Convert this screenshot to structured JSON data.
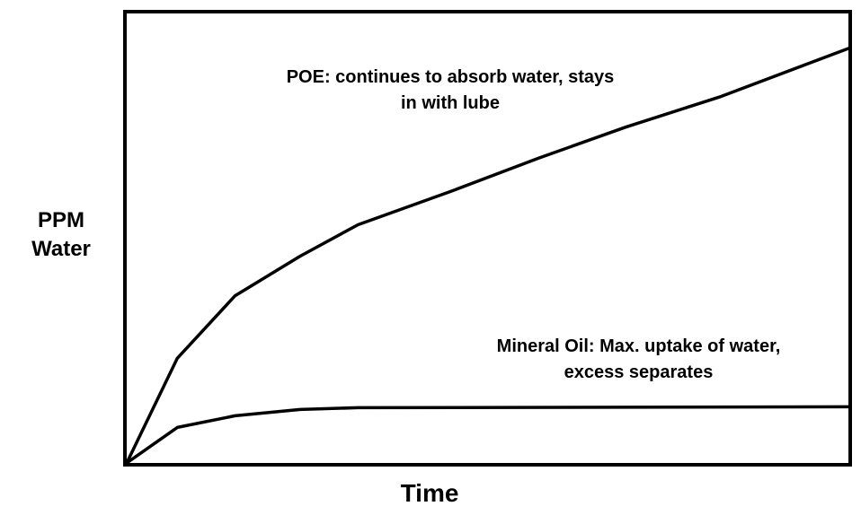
{
  "chart_data": {
    "type": "line",
    "x_label": "Time",
    "y_label": "PPM Water",
    "xlim": [
      0,
      100
    ],
    "ylim": [
      0,
      100
    ],
    "series": [
      {
        "name": "POE",
        "color": "#000000",
        "x": [
          0,
          7,
          15,
          24,
          32,
          45,
          57,
          69,
          82,
          100
        ],
        "values": [
          0,
          23.3,
          37.2,
          46,
          53,
          60.5,
          67.8,
          74.7,
          81.4,
          92.3
        ]
      },
      {
        "name": "Mineral Oil",
        "color": "#000000",
        "x": [
          0,
          7,
          15,
          24,
          32,
          100
        ],
        "values": [
          0,
          7.9,
          10.5,
          11.9,
          12.3,
          12.5
        ]
      }
    ],
    "annotations": [
      {
        "text": "POE: continues to absorb water, stays in with lube",
        "series": 0
      },
      {
        "text": "Mineral Oil: Max. uptake of water, excess separates",
        "series": 1
      }
    ]
  }
}
